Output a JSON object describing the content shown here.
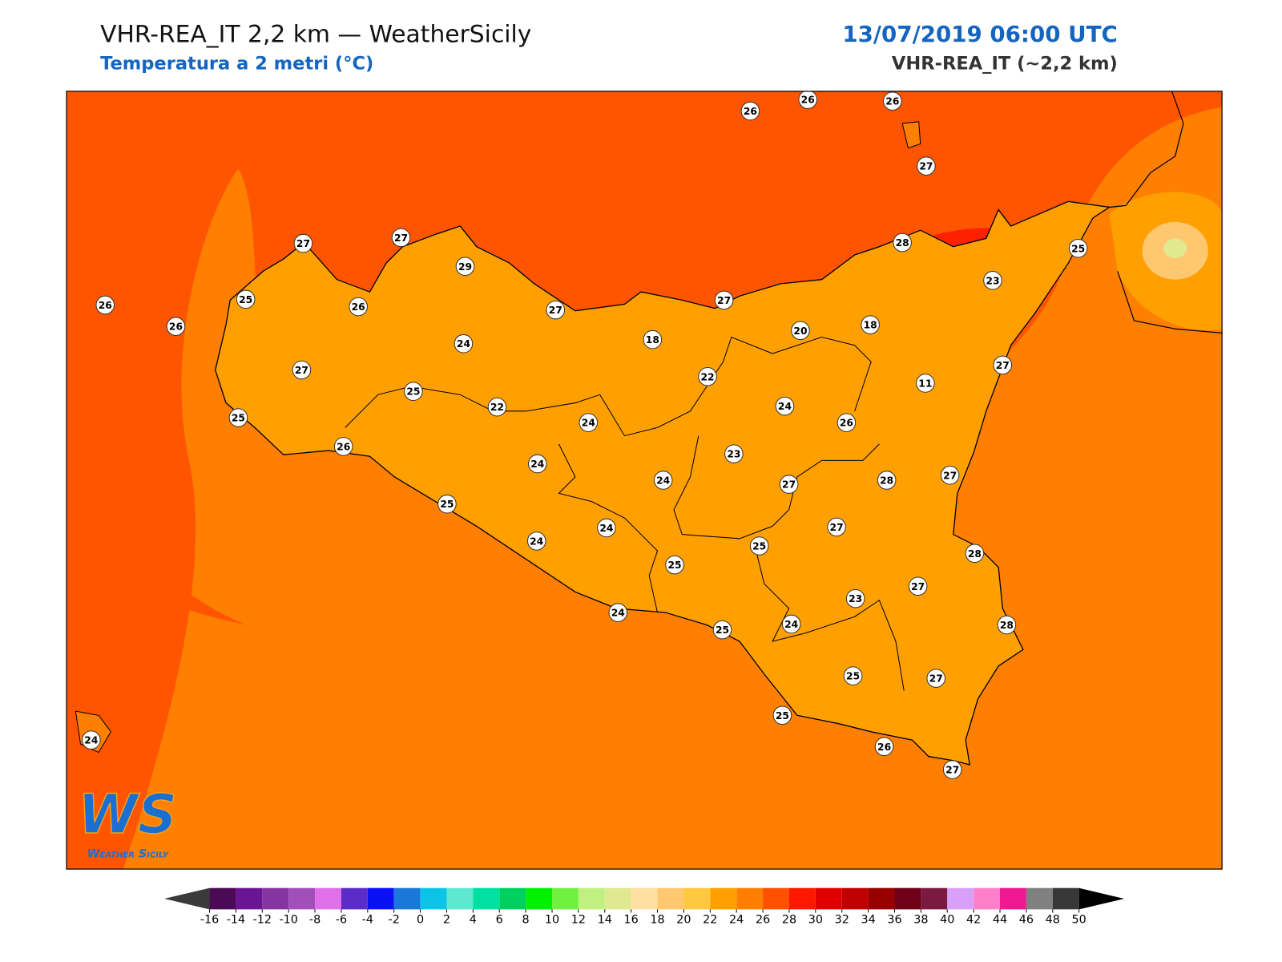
{
  "header": {
    "title": "VHR-REA_IT 2,2 km — WeatherSicily",
    "subtitle": "Temperatura a 2 metri (°C)",
    "datetime": "13/07/2019 06:00 UTC",
    "model": "VHR-REA_IT (~2,2 km)"
  },
  "stations": [
    26,
    26,
    26,
    27,
    27,
    27,
    29,
    26,
    25,
    26,
    26,
    27,
    27,
    28,
    25,
    23,
    20,
    18,
    18,
    24,
    27,
    22,
    11,
    27,
    25,
    22,
    24,
    24,
    26,
    25,
    26,
    23,
    24,
    24,
    27,
    28,
    27,
    25,
    27,
    24,
    24,
    25,
    25,
    28,
    27,
    23,
    24,
    25,
    24,
    28,
    25,
    27,
    25,
    26,
    27,
    24
  ],
  "colorbar": {
    "ticks": [
      -16,
      -14,
      -12,
      -10,
      -8,
      -6,
      -4,
      -2,
      0,
      2,
      4,
      6,
      8,
      10,
      12,
      14,
      16,
      18,
      20,
      22,
      24,
      26,
      28,
      30,
      32,
      34,
      36,
      38,
      40,
      42,
      44,
      46,
      48,
      50
    ],
    "colors": [
      "#4b0a55",
      "#6a1593",
      "#8435a0",
      "#a050b8",
      "#df70ea",
      "#5b2cc8",
      "#0a10f5",
      "#1a78d8",
      "#0cc4e6",
      "#5ee8d0",
      "#00e0a0",
      "#00d060",
      "#00f000",
      "#70f040",
      "#c0f080",
      "#e0e890",
      "#ffe0a0",
      "#ffc870",
      "#ffc840",
      "#ffa000",
      "#ff8000",
      "#ff5000",
      "#ff1800",
      "#e00000",
      "#c00000",
      "#980000",
      "#700018",
      "#7a1a40",
      "#d8a0f8",
      "#ff80c8",
      "#f01890",
      "#808080",
      "#383838"
    ],
    "under_color": "#3a3a3a",
    "over_color": "#000000"
  },
  "logo": {
    "text": "WS",
    "caption": "Weather Sicily"
  }
}
